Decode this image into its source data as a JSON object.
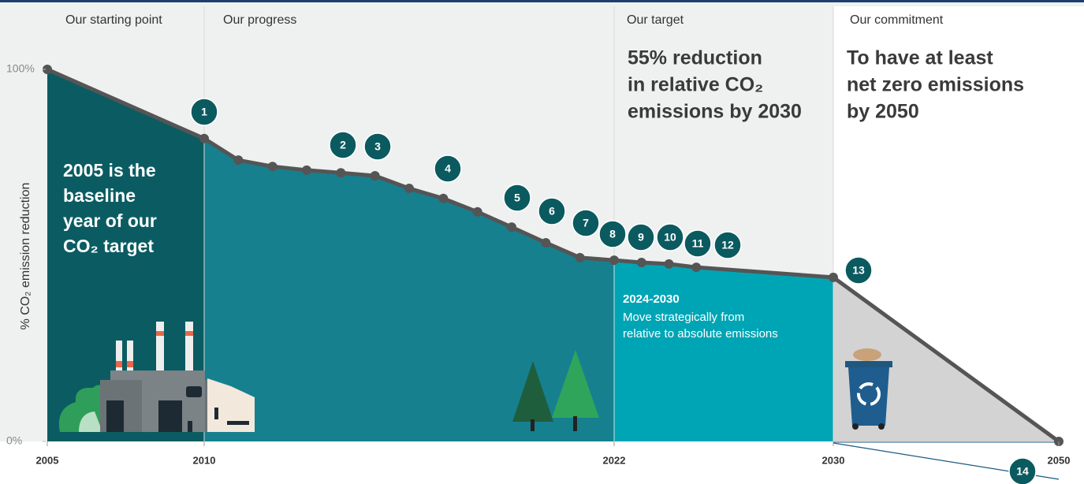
{
  "chart_data": {
    "type": "area",
    "y_label": "% CO₂ emission reduction",
    "x": [
      2005,
      2010,
      2011,
      2012,
      2013,
      2014,
      2015,
      2016,
      2017,
      2018,
      2019,
      2020,
      2021,
      2022,
      2023,
      2024,
      2025,
      2030,
      2050
    ],
    "values": [
      100,
      81.4,
      75.6,
      73.9,
      72.9,
      72.2,
      71.4,
      68,
      65.3,
      61.7,
      57.6,
      53.4,
      49.4,
      48.7,
      48.1,
      47.7,
      46.8,
      44.1,
      0
    ],
    "color": "#555555",
    "xlim": [
      2005,
      2050
    ],
    "xticks": [
      2005,
      2010,
      2022,
      2030,
      2050
    ],
    "ylim": [
      0,
      100
    ],
    "yticks": [
      {
        "value": 0,
        "label": "0%"
      },
      {
        "value": 100,
        "label": "100%"
      }
    ],
    "regions": [
      {
        "from": 2005,
        "to": 2010,
        "color": "#0b5c62"
      },
      {
        "from": 2010,
        "to": 2022,
        "color": "#16808f"
      },
      {
        "from": 2022,
        "to": 2030,
        "color": "#00a5b5"
      },
      {
        "from": 2030,
        "to": 2050,
        "color": "#d3d3d3"
      }
    ],
    "sections": [
      "Our starting point",
      "Our progress",
      "Our target",
      "Our commitment"
    ],
    "target_text": [
      "55% reduction",
      "in relative CO₂",
      "emissions by 2030"
    ],
    "commitment_text": [
      "To have at least",
      "net zero emissions",
      "by 2050"
    ],
    "baseline_text": [
      "2005 is the",
      "baseline",
      "year of our",
      "CO₂ target"
    ],
    "period_note": {
      "title": "2024-2030",
      "lines": [
        "Move strategically from",
        "relative to absolute emissions"
      ]
    },
    "markers": [
      "1",
      "2",
      "3",
      "4",
      "5",
      "6",
      "7",
      "8",
      "9",
      "10",
      "11",
      "12",
      "13",
      "14"
    ]
  }
}
